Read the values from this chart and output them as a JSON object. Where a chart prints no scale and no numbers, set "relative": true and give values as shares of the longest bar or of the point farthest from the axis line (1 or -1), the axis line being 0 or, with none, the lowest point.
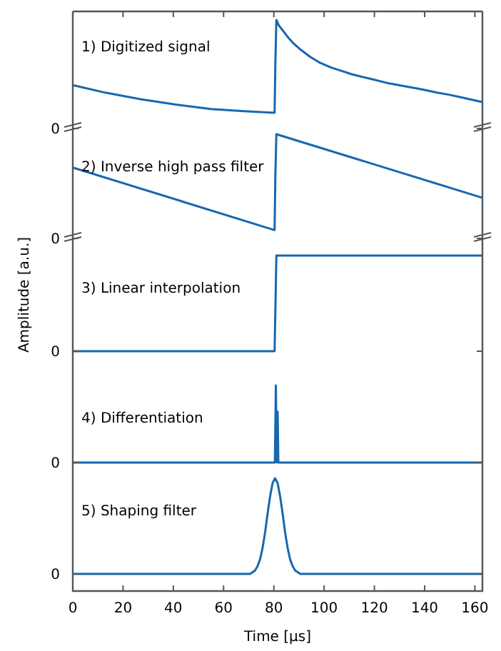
{
  "chart_data": [
    {
      "type": "line",
      "title": "1) Digitized signal",
      "annotations": [
        "0"
      ],
      "relative": true,
      "xlim": [
        0,
        163
      ],
      "xticks": [
        0,
        20,
        40,
        60,
        80,
        100,
        120,
        140,
        160
      ],
      "tick_labels": false,
      "series": [
        {
          "color": "#1668b0",
          "x": [
            0,
            13,
            27,
            41,
            55,
            68,
            80.3,
            80.6,
            81,
            82,
            84,
            86,
            88,
            91,
            94.5,
            98,
            103,
            107,
            111,
            118,
            125,
            132,
            139,
            145,
            150,
            156,
            163
          ],
          "values": [
            0.4,
            0.33,
            0.27,
            0.22,
            0.18,
            0.16,
            0.145,
            0.6,
            1.0,
            0.95,
            0.89,
            0.83,
            0.78,
            0.72,
            0.66,
            0.61,
            0.56,
            0.53,
            0.5,
            0.46,
            0.42,
            0.39,
            0.36,
            0.33,
            0.31,
            0.28,
            0.243
          ]
        }
      ]
    },
    {
      "type": "line",
      "title": "2) Inverse high pass filter",
      "annotations": [
        "0"
      ],
      "relative": true,
      "xlim": [
        0,
        163
      ],
      "tick_labels": false,
      "series": [
        {
          "color": "#1668b0",
          "x": [
            0,
            80.3,
            80.6,
            81,
            163
          ],
          "values": [
            0.68,
            0.08,
            0.6,
            1.0,
            0.39
          ]
        }
      ]
    },
    {
      "type": "line",
      "title": "3) Linear interpolation",
      "ylabel": "Amplitude [a.u.]",
      "annotations": [
        "0"
      ],
      "relative": true,
      "xlim": [
        0,
        163
      ],
      "tick_labels": false,
      "series": [
        {
          "color": "#1668b0",
          "x": [
            0,
            80.3,
            81,
            163
          ],
          "values": [
            0,
            0,
            1,
            1
          ]
        }
      ]
    },
    {
      "type": "line",
      "title": "4) Differentiation",
      "annotations": [
        "0"
      ],
      "relative": true,
      "xlim": [
        0,
        163
      ],
      "tick_labels": false,
      "series": [
        {
          "color": "#1668b0",
          "x": [
            0,
            80.4,
            80.8,
            81.2,
            81.5,
            81.8,
            82.2,
            163
          ],
          "values": [
            0,
            0,
            1,
            0,
            0.66,
            0,
            0,
            0
          ]
        }
      ]
    },
    {
      "type": "line",
      "title": "5) Shaping filter",
      "xlabel": "Time [µs]",
      "annotations": [
        "0"
      ],
      "relative": true,
      "xlim": [
        0,
        163
      ],
      "xticks": [
        0,
        20,
        40,
        60,
        80,
        100,
        120,
        140,
        160
      ],
      "tick_labels": "x",
      "series": [
        {
          "color": "#1668b0",
          "x": [
            0,
            70.5,
            72.5,
            73.5,
            74.5,
            75.5,
            76.5,
            77.5,
            78.5,
            79.5,
            80.5,
            81.5,
            82.5,
            83.5,
            84.5,
            85.5,
            86.5,
            87.5,
            88.5,
            90.5,
            163
          ],
          "values": [
            0,
            0,
            0.036,
            0.08,
            0.15,
            0.27,
            0.43,
            0.63,
            0.81,
            0.95,
            1,
            0.95,
            0.81,
            0.63,
            0.43,
            0.27,
            0.15,
            0.08,
            0.036,
            0,
            0
          ]
        }
      ]
    }
  ]
}
